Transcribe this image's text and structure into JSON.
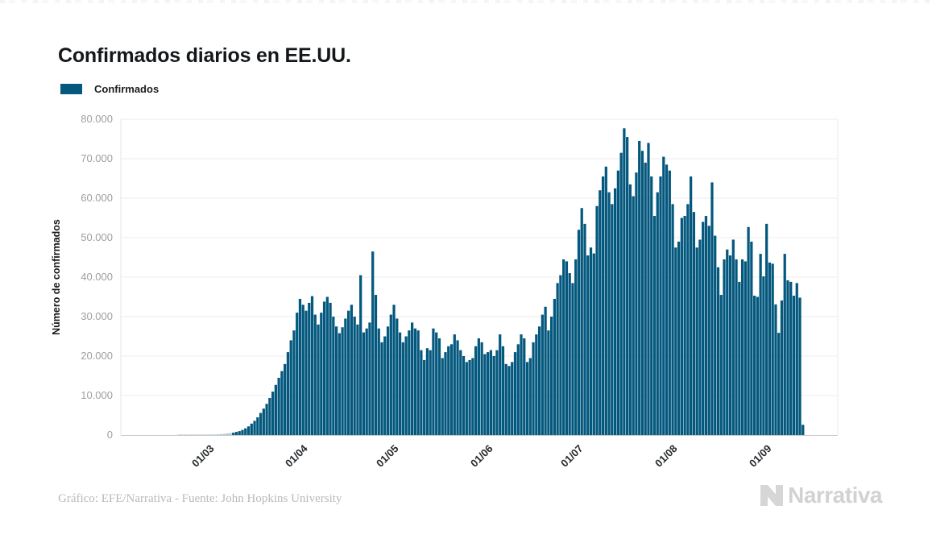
{
  "page": {
    "title": "Confirmados diarios en EE.UU.",
    "footer_credit": "Gráfico: EFE/Narrativa - Fuente: John Hopkins University",
    "brand": "Narrativa"
  },
  "legend": {
    "label": "Confirmados",
    "color": "#04587E"
  },
  "chart_data": {
    "type": "bar",
    "title": "Confirmados diarios en EE.UU.",
    "series_name": "Confirmados",
    "xlabel": "",
    "ylabel": "Número de confirmados",
    "ylim": [
      0,
      80000
    ],
    "grid": true,
    "legend_position": "top-left",
    "bar_color": "#04587E",
    "start_date": "2020-02-20",
    "frequency": "daily",
    "y_ticks": [
      {
        "label": "0",
        "value": 0
      },
      {
        "label": "10.000",
        "value": 10000
      },
      {
        "label": "20.000",
        "value": 20000
      },
      {
        "label": "30.000",
        "value": 30000
      },
      {
        "label": "40.000",
        "value": 40000
      },
      {
        "label": "50.000",
        "value": 50000
      },
      {
        "label": "60.000",
        "value": 60000
      },
      {
        "label": "70.000",
        "value": 70000
      },
      {
        "label": "80.000",
        "value": 80000
      }
    ],
    "x_ticks": [
      {
        "label": "01/03",
        "index": 10
      },
      {
        "label": "01/04",
        "index": 41
      },
      {
        "label": "01/05",
        "index": 71
      },
      {
        "label": "01/06",
        "index": 102
      },
      {
        "label": "01/07",
        "index": 132
      },
      {
        "label": "01/08",
        "index": 163
      },
      {
        "label": "01/09",
        "index": 194
      }
    ],
    "values": [
      20,
      25,
      30,
      35,
      45,
      55,
      60,
      60,
      65,
      70,
      75,
      100,
      120,
      180,
      220,
      300,
      400,
      500,
      600,
      800,
      1000,
      1300,
      1700,
      2200,
      2900,
      3600,
      4500,
      5600,
      6700,
      7900,
      9400,
      11000,
      12700,
      14500,
      16200,
      18000,
      21000,
      24000,
      26500,
      31000,
      34500,
      33000,
      31500,
      33500,
      35200,
      30500,
      28000,
      31000,
      33800,
      35000,
      33500,
      30000,
      27500,
      25800,
      27300,
      29500,
      31500,
      33000,
      30000,
      28000,
      40500,
      26000,
      27000,
      28500,
      46500,
      35500,
      27000,
      23500,
      25000,
      27500,
      30500,
      33000,
      29500,
      26000,
      23500,
      25000,
      26500,
      28500,
      27000,
      26500,
      21500,
      19000,
      22000,
      21500,
      27000,
      26000,
      24500,
      19500,
      21000,
      22500,
      23000,
      25500,
      24000,
      21500,
      20000,
      18500,
      19000,
      19500,
      22500,
      24500,
      23500,
      20500,
      21000,
      21500,
      20000,
      21500,
      25500,
      22500,
      18000,
      17500,
      18500,
      21000,
      23000,
      25500,
      24500,
      18500,
      19500,
      23500,
      25500,
      27500,
      30500,
      32500,
      26500,
      30000,
      34500,
      38500,
      40500,
      44500,
      44000,
      41000,
      38500,
      44500,
      52000,
      57500,
      53500,
      45500,
      47500,
      46000,
      58000,
      62000,
      65500,
      68000,
      61500,
      58500,
      62500,
      67000,
      71500,
      77700,
      75500,
      63500,
      60500,
      66500,
      74500,
      72000,
      69000,
      74000,
      65500,
      55500,
      61500,
      65500,
      70500,
      68500,
      67000,
      58500,
      47500,
      49000,
      55000,
      55500,
      58500,
      65500,
      56500,
      47500,
      49500,
      54000,
      55500,
      53000,
      64000,
      50500,
      42500,
      35500,
      44500,
      47000,
      45500,
      49500,
      44500,
      38800,
      44500,
      44000,
      52700,
      49000,
      35300,
      35000,
      45900,
      40200,
      53500,
      43700,
      43400,
      33100,
      25900,
      34100,
      45900,
      39200,
      38800,
      35300,
      38500,
      34800,
      2600
    ]
  }
}
